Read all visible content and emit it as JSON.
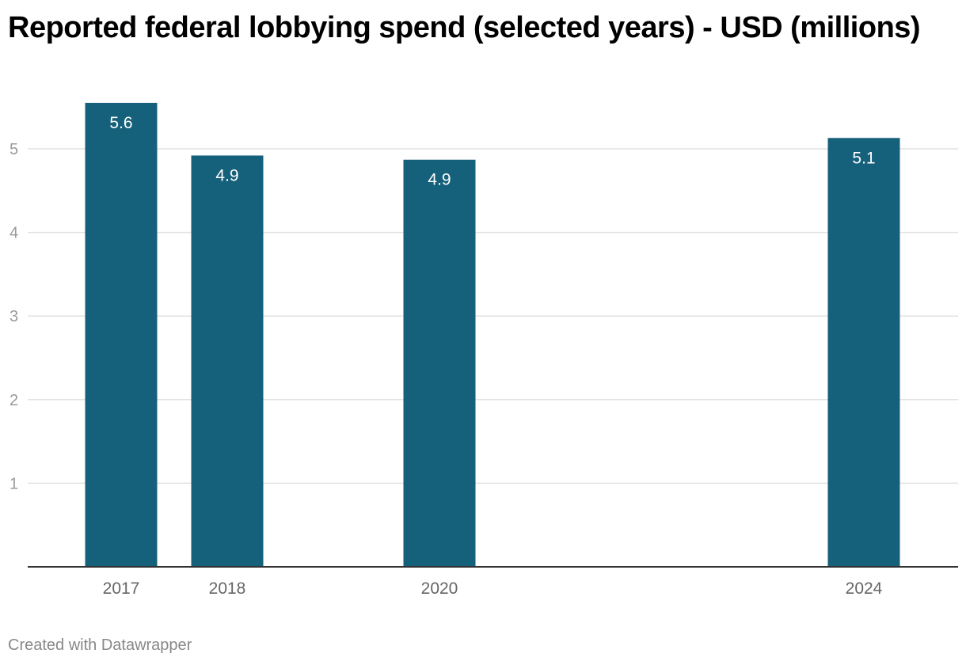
{
  "chart_data": {
    "type": "bar",
    "title": "Reported federal lobbying spend (selected years) - USD (millions)",
    "xlabel": "",
    "ylabel": "",
    "categories": [
      "2017",
      "2018",
      "2020",
      "2024"
    ],
    "values": [
      5.55,
      4.92,
      4.87,
      5.13
    ],
    "data_labels": [
      "5.6",
      "4.9",
      "4.9",
      "5.1"
    ],
    "x_axis": "time (years)",
    "xlim": [
      2016.1,
      2024.9
    ],
    "ylim": [
      0,
      5.5
    ],
    "yticks": [
      1,
      2,
      3,
      4,
      5
    ],
    "grid": "horizontal",
    "legend": "none",
    "bar_color": "#15607a"
  },
  "footer": "Created with Datawrapper"
}
